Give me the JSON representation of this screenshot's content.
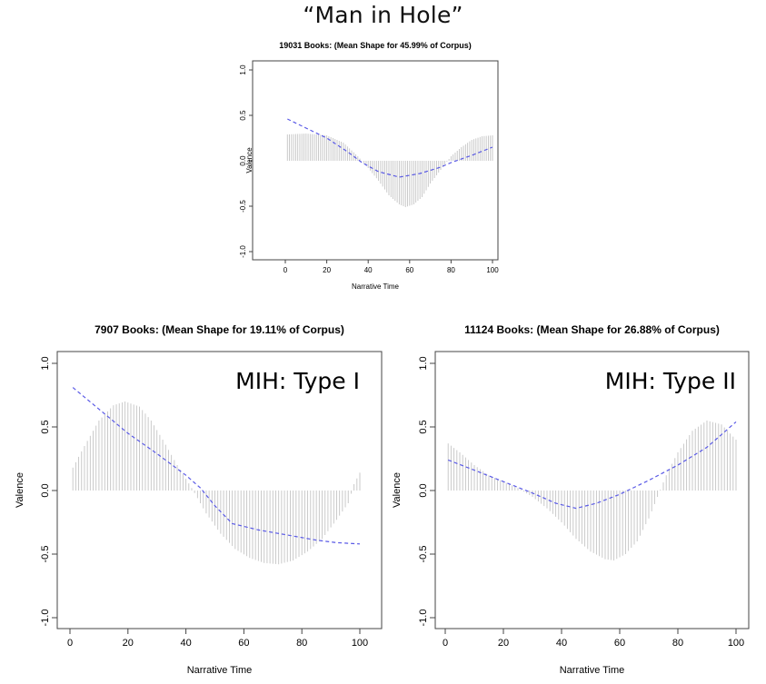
{
  "slide_title": "“Man in Hole”",
  "chart_data": [
    {
      "id": "main",
      "type": "bar",
      "title": "19031 Books: (Mean Shape for 45.99% of Corpus)",
      "xlabel": "Narrative Time",
      "ylabel": "Valence",
      "annotation": "",
      "xlim": [
        0,
        100
      ],
      "ylim": [
        -1.0,
        1.0
      ],
      "xticks": [
        "0",
        "20",
        "40",
        "60",
        "80",
        "100"
      ],
      "yticks": [
        "-1.0",
        "-0.5",
        "0.0",
        "0.5",
        "1.0"
      ],
      "bar_knots": [
        [
          1,
          0.29
        ],
        [
          10,
          0.3
        ],
        [
          20,
          0.28
        ],
        [
          28,
          0.2
        ],
        [
          35,
          0.05
        ],
        [
          40,
          -0.08
        ],
        [
          45,
          -0.22
        ],
        [
          50,
          -0.38
        ],
        [
          55,
          -0.48
        ],
        [
          58,
          -0.51
        ],
        [
          62,
          -0.48
        ],
        [
          66,
          -0.4
        ],
        [
          70,
          -0.25
        ],
        [
          75,
          -0.1
        ],
        [
          80,
          0.05
        ],
        [
          85,
          0.15
        ],
        [
          90,
          0.23
        ],
        [
          95,
          0.27
        ],
        [
          100,
          0.28
        ]
      ],
      "line": [
        [
          1,
          0.46
        ],
        [
          10,
          0.36
        ],
        [
          20,
          0.25
        ],
        [
          30,
          0.1
        ],
        [
          37,
          -0.02
        ],
        [
          45,
          -0.12
        ],
        [
          55,
          -0.18
        ],
        [
          65,
          -0.14
        ],
        [
          75,
          -0.07
        ],
        [
          80,
          -0.02
        ],
        [
          90,
          0.06
        ],
        [
          100,
          0.15
        ]
      ]
    },
    {
      "id": "left",
      "type": "bar",
      "title": "7907 Books: (Mean Shape for 19.11% of Corpus)",
      "xlabel": "Narrative Time",
      "ylabel": "Valence",
      "annotation": "MIH: Type I",
      "xlim": [
        0,
        100
      ],
      "ylim": [
        -1.0,
        1.0
      ],
      "xticks": [
        "0",
        "20",
        "40",
        "60",
        "80",
        "100"
      ],
      "yticks": [
        "-1.0",
        "-0.5",
        "0.0",
        "0.5",
        "1.0"
      ],
      "bar_knots": [
        [
          1,
          0.18
        ],
        [
          5,
          0.35
        ],
        [
          10,
          0.55
        ],
        [
          15,
          0.67
        ],
        [
          19,
          0.7
        ],
        [
          24,
          0.66
        ],
        [
          28,
          0.55
        ],
        [
          32,
          0.4
        ],
        [
          37,
          0.2
        ],
        [
          42,
          0.02
        ],
        [
          47,
          -0.18
        ],
        [
          52,
          -0.34
        ],
        [
          57,
          -0.46
        ],
        [
          62,
          -0.53
        ],
        [
          67,
          -0.57
        ],
        [
          72,
          -0.58
        ],
        [
          77,
          -0.55
        ],
        [
          82,
          -0.48
        ],
        [
          87,
          -0.38
        ],
        [
          92,
          -0.23
        ],
        [
          96,
          -0.1
        ],
        [
          98,
          0.05
        ],
        [
          100,
          0.14
        ]
      ],
      "line": [
        [
          1,
          0.81
        ],
        [
          10,
          0.64
        ],
        [
          20,
          0.45
        ],
        [
          30,
          0.29
        ],
        [
          40,
          0.12
        ],
        [
          45,
          0.02
        ],
        [
          50,
          -0.12
        ],
        [
          56,
          -0.26
        ],
        [
          65,
          -0.31
        ],
        [
          75,
          -0.35
        ],
        [
          85,
          -0.39
        ],
        [
          92,
          -0.41
        ],
        [
          100,
          -0.42
        ]
      ]
    },
    {
      "id": "right",
      "type": "bar",
      "title": "11124 Books: (Mean Shape for 26.88% of Corpus)",
      "xlabel": "Narrative Time",
      "ylabel": "Valence",
      "annotation": "MIH: Type II",
      "xlim": [
        0,
        100
      ],
      "ylim": [
        -1.0,
        1.0
      ],
      "xticks": [
        "0",
        "20",
        "40",
        "60",
        "80",
        "100"
      ],
      "yticks": [
        "-1.0",
        "-0.5",
        "0.0",
        "0.5",
        "1.0"
      ],
      "bar_knots": [
        [
          1,
          0.37
        ],
        [
          5,
          0.3
        ],
        [
          10,
          0.2
        ],
        [
          15,
          0.12
        ],
        [
          20,
          0.07
        ],
        [
          25,
          0.02
        ],
        [
          30,
          -0.05
        ],
        [
          35,
          -0.14
        ],
        [
          40,
          -0.25
        ],
        [
          45,
          -0.38
        ],
        [
          50,
          -0.48
        ],
        [
          55,
          -0.54
        ],
        [
          58,
          -0.55
        ],
        [
          62,
          -0.5
        ],
        [
          66,
          -0.4
        ],
        [
          70,
          -0.22
        ],
        [
          73,
          -0.05
        ],
        [
          76,
          0.12
        ],
        [
          80,
          0.3
        ],
        [
          85,
          0.47
        ],
        [
          90,
          0.55
        ],
        [
          95,
          0.52
        ],
        [
          100,
          0.4
        ]
      ],
      "line": [
        [
          1,
          0.24
        ],
        [
          10,
          0.16
        ],
        [
          20,
          0.07
        ],
        [
          30,
          -0.02
        ],
        [
          38,
          -0.1
        ],
        [
          45,
          -0.14
        ],
        [
          52,
          -0.1
        ],
        [
          60,
          -0.03
        ],
        [
          70,
          0.08
        ],
        [
          80,
          0.2
        ],
        [
          90,
          0.34
        ],
        [
          100,
          0.54
        ]
      ]
    }
  ]
}
